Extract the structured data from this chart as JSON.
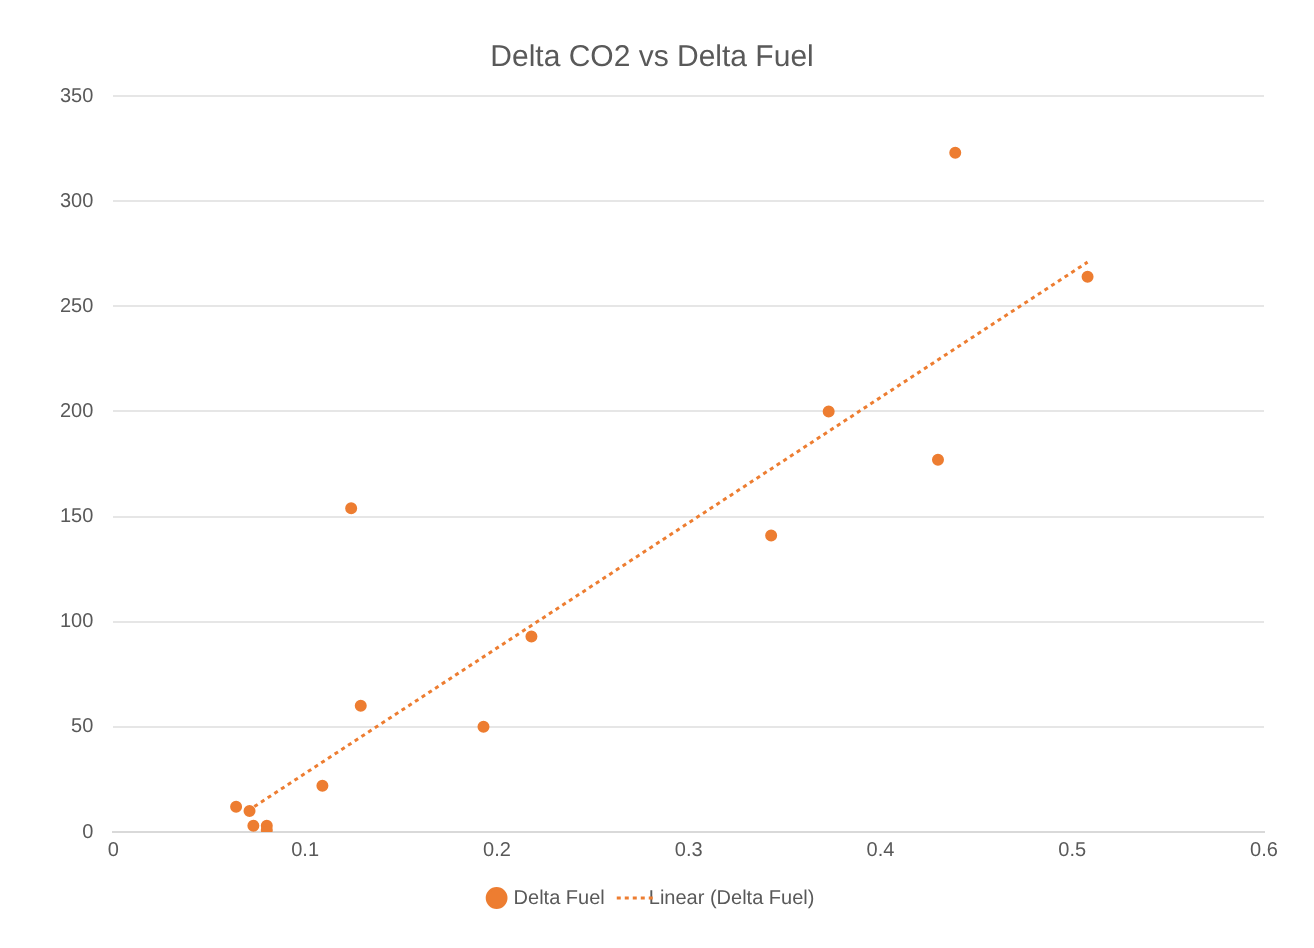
{
  "chart_data": {
    "type": "scatter",
    "title": "Delta CO2 vs Delta Fuel",
    "xlim": [
      0,
      0.6
    ],
    "xticks": [
      0,
      0.1,
      0.2,
      0.3,
      0.4,
      0.5,
      0.6
    ],
    "ylim": [
      0,
      350
    ],
    "yticks": [
      0,
      50,
      100,
      150,
      200,
      250,
      300,
      350
    ],
    "grid": "y",
    "legend": "bottom",
    "marker": "circle",
    "series": [
      {
        "name": "Delta Fuel",
        "color": "#ed7d31",
        "x": [
          0.064,
          0.071,
          0.073,
          0.08,
          0.08,
          0.109,
          0.124,
          0.129,
          0.193,
          0.218,
          0.343,
          0.373,
          0.43,
          0.439,
          0.508
        ],
        "values": [
          12,
          10,
          3,
          3,
          1,
          22,
          154,
          60,
          50,
          93,
          141,
          200,
          177,
          323,
          264
        ]
      },
      {
        "name": "Linear (Delta Fuel)",
        "type": "line",
        "color": "#ed7d31",
        "line_style": "dotted",
        "marker": "none",
        "x": [
          0.07,
          0.508
        ],
        "values": [
          10,
          271
        ]
      }
    ]
  }
}
